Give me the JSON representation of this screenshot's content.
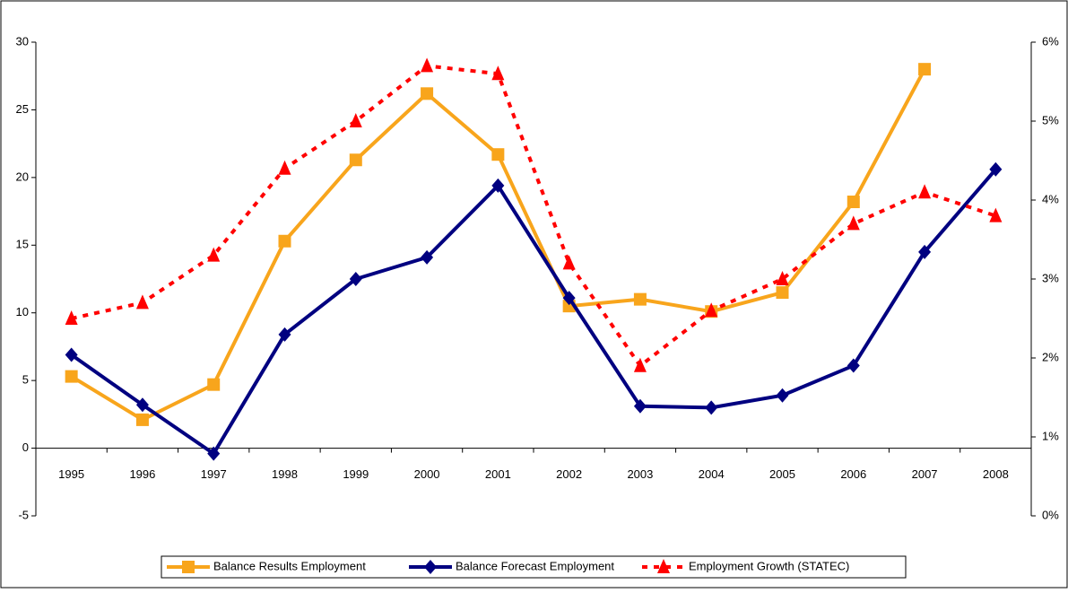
{
  "chart_data": {
    "type": "line",
    "categories": [
      "1995",
      "1996",
      "1997",
      "1998",
      "1999",
      "2000",
      "2001",
      "2002",
      "2003",
      "2004",
      "2005",
      "2006",
      "2007",
      "2008"
    ],
    "series": [
      {
        "name": "Balance Results Employment",
        "color": "#f8a51c",
        "marker": "square",
        "dash": false,
        "values": [
          5.3,
          2.1,
          4.7,
          15.3,
          21.3,
          26.2,
          21.7,
          10.5,
          11.0,
          10.1,
          11.5,
          18.2,
          28.0,
          null
        ]
      },
      {
        "name": "Balance Forecast Employment",
        "color": "#000080",
        "marker": "diamond",
        "dash": false,
        "values": [
          6.9,
          3.2,
          -0.4,
          8.4,
          12.5,
          14.1,
          19.4,
          11.1,
          3.1,
          3.0,
          3.9,
          6.1,
          14.5,
          20.6
        ]
      },
      {
        "name": "Employment Growth (STATEC)",
        "color": "#ff0000",
        "marker": "triangle",
        "dash": true,
        "axis": "y2",
        "values": [
          2.5,
          2.7,
          3.3,
          4.4,
          5.0,
          5.7,
          5.6,
          3.2,
          1.9,
          2.6,
          3.0,
          3.7,
          4.1,
          3.8
        ]
      }
    ],
    "ylim": [
      -5,
      30
    ],
    "yticks": [
      -5,
      0,
      5,
      10,
      15,
      20,
      25,
      30
    ],
    "y2lim": [
      0,
      6
    ],
    "y2ticks": [
      {
        "value": 0,
        "label": "0%"
      },
      {
        "value": 1,
        "label": "1%"
      },
      {
        "value": 2,
        "label": "2%"
      },
      {
        "value": 3,
        "label": "3%"
      },
      {
        "value": 4,
        "label": "4%"
      },
      {
        "value": 5,
        "label": "5%"
      },
      {
        "value": 6,
        "label": "6%"
      }
    ],
    "legend": "bottom"
  }
}
